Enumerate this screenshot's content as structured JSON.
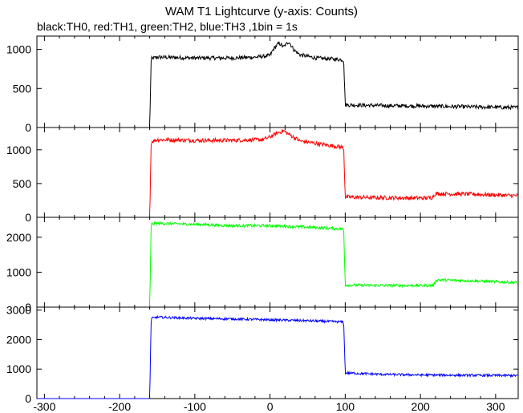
{
  "chart_data": {
    "type": "line",
    "title": "WAM T1 Lightcurve (y-axis: Counts)",
    "subtitle": "black:TH0, red:TH1, green:TH2, blue:TH3 ,1bin = 1s",
    "xlim": [
      -310,
      330
    ],
    "x_ticks": [
      -300,
      -200,
      -100,
      0,
      100,
      200,
      300
    ],
    "grid": false,
    "panels": [
      {
        "name": "TH0",
        "color": "#000000",
        "ylim": [
          0,
          1170
        ],
        "y_ticks": [
          0,
          500,
          1000
        ],
        "noise": 25,
        "points": [
          [
            -310,
            0
          ],
          [
            -160,
            0
          ],
          [
            -158,
            880
          ],
          [
            -150,
            900
          ],
          [
            -100,
            890
          ],
          [
            -50,
            890
          ],
          [
            -20,
            900
          ],
          [
            0,
            920
          ],
          [
            5,
            1010
          ],
          [
            12,
            1080
          ],
          [
            18,
            1030
          ],
          [
            25,
            1100
          ],
          [
            32,
            990
          ],
          [
            40,
            930
          ],
          [
            60,
            890
          ],
          [
            95,
            870
          ],
          [
            98,
            860
          ],
          [
            100,
            290
          ],
          [
            150,
            280
          ],
          [
            200,
            275
          ],
          [
            260,
            265
          ],
          [
            330,
            255
          ]
        ]
      },
      {
        "name": "TH1",
        "color": "#ff0000",
        "ylim": [
          0,
          1330
        ],
        "y_ticks": [
          0,
          500,
          1000
        ],
        "noise": 30,
        "points": [
          [
            -310,
            0
          ],
          [
            -160,
            0
          ],
          [
            -158,
            1120
          ],
          [
            -150,
            1150
          ],
          [
            -100,
            1140
          ],
          [
            -50,
            1140
          ],
          [
            -10,
            1150
          ],
          [
            0,
            1190
          ],
          [
            10,
            1250
          ],
          [
            18,
            1280
          ],
          [
            25,
            1230
          ],
          [
            40,
            1130
          ],
          [
            70,
            1080
          ],
          [
            95,
            1040
          ],
          [
            98,
            1030
          ],
          [
            100,
            300
          ],
          [
            150,
            290
          ],
          [
            200,
            285
          ],
          [
            215,
            290
          ],
          [
            220,
            350
          ],
          [
            260,
            345
          ],
          [
            330,
            320
          ]
        ]
      },
      {
        "name": "TH2",
        "color": "#00ff00",
        "ylim": [
          0,
          2570
        ],
        "y_ticks": [
          0,
          1000,
          2000
        ],
        "noise": 40,
        "points": [
          [
            -310,
            0
          ],
          [
            -160,
            0
          ],
          [
            -158,
            2380
          ],
          [
            -150,
            2400
          ],
          [
            -100,
            2370
          ],
          [
            -50,
            2330
          ],
          [
            0,
            2330
          ],
          [
            50,
            2290
          ],
          [
            95,
            2240
          ],
          [
            98,
            2220
          ],
          [
            100,
            630
          ],
          [
            150,
            620
          ],
          [
            200,
            620
          ],
          [
            217,
            620
          ],
          [
            222,
            780
          ],
          [
            260,
            760
          ],
          [
            330,
            700
          ]
        ]
      },
      {
        "name": "TH3",
        "color": "#0000ff",
        "ylim": [
          0,
          3100
        ],
        "y_ticks": [
          0,
          1000,
          2000,
          3000
        ],
        "noise": 40,
        "points": [
          [
            -310,
            0
          ],
          [
            -160,
            0
          ],
          [
            -158,
            2720
          ],
          [
            -150,
            2760
          ],
          [
            -100,
            2720
          ],
          [
            -50,
            2700
          ],
          [
            0,
            2670
          ],
          [
            50,
            2640
          ],
          [
            95,
            2600
          ],
          [
            98,
            2580
          ],
          [
            100,
            870
          ],
          [
            150,
            820
          ],
          [
            200,
            800
          ],
          [
            260,
            790
          ],
          [
            330,
            780
          ]
        ]
      }
    ]
  }
}
